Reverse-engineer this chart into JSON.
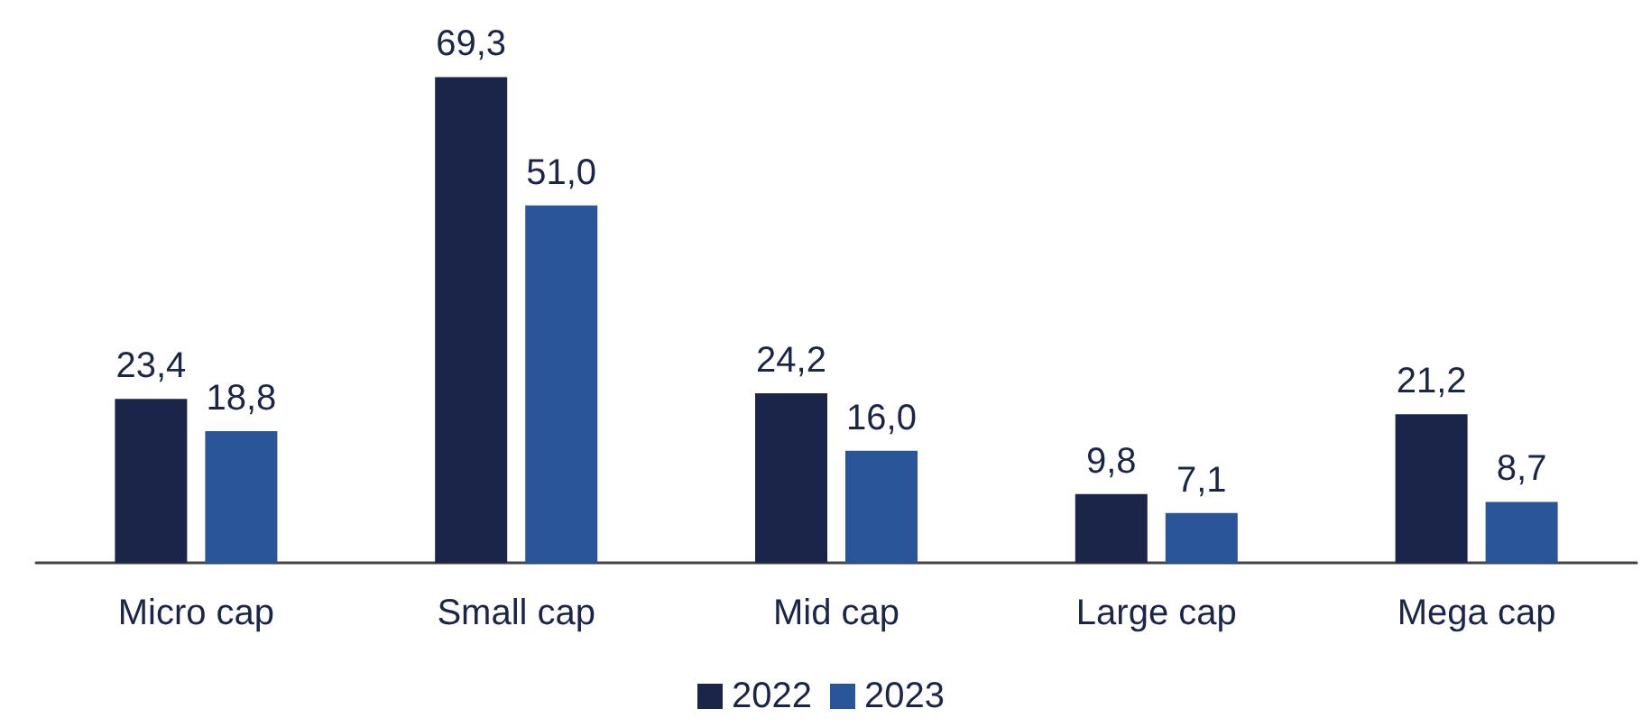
{
  "chart_data": {
    "type": "bar",
    "categories": [
      "Micro cap",
      "Small cap",
      "Mid cap",
      "Large cap",
      "Mega cap"
    ],
    "series": [
      {
        "name": "2022",
        "color": "#1a2549",
        "values": [
          23.4,
          69.3,
          24.2,
          9.8,
          21.2
        ],
        "value_labels": [
          "23,4",
          "69,3",
          "24,2",
          "9,8",
          "21,2"
        ]
      },
      {
        "name": "2023",
        "color": "#2a5599",
        "values": [
          18.8,
          51.0,
          16.0,
          7.1,
          8.7
        ],
        "value_labels": [
          "18,8",
          "51,0",
          "16,0",
          "7,1",
          "8,7"
        ]
      }
    ],
    "legend": "bottom"
  }
}
